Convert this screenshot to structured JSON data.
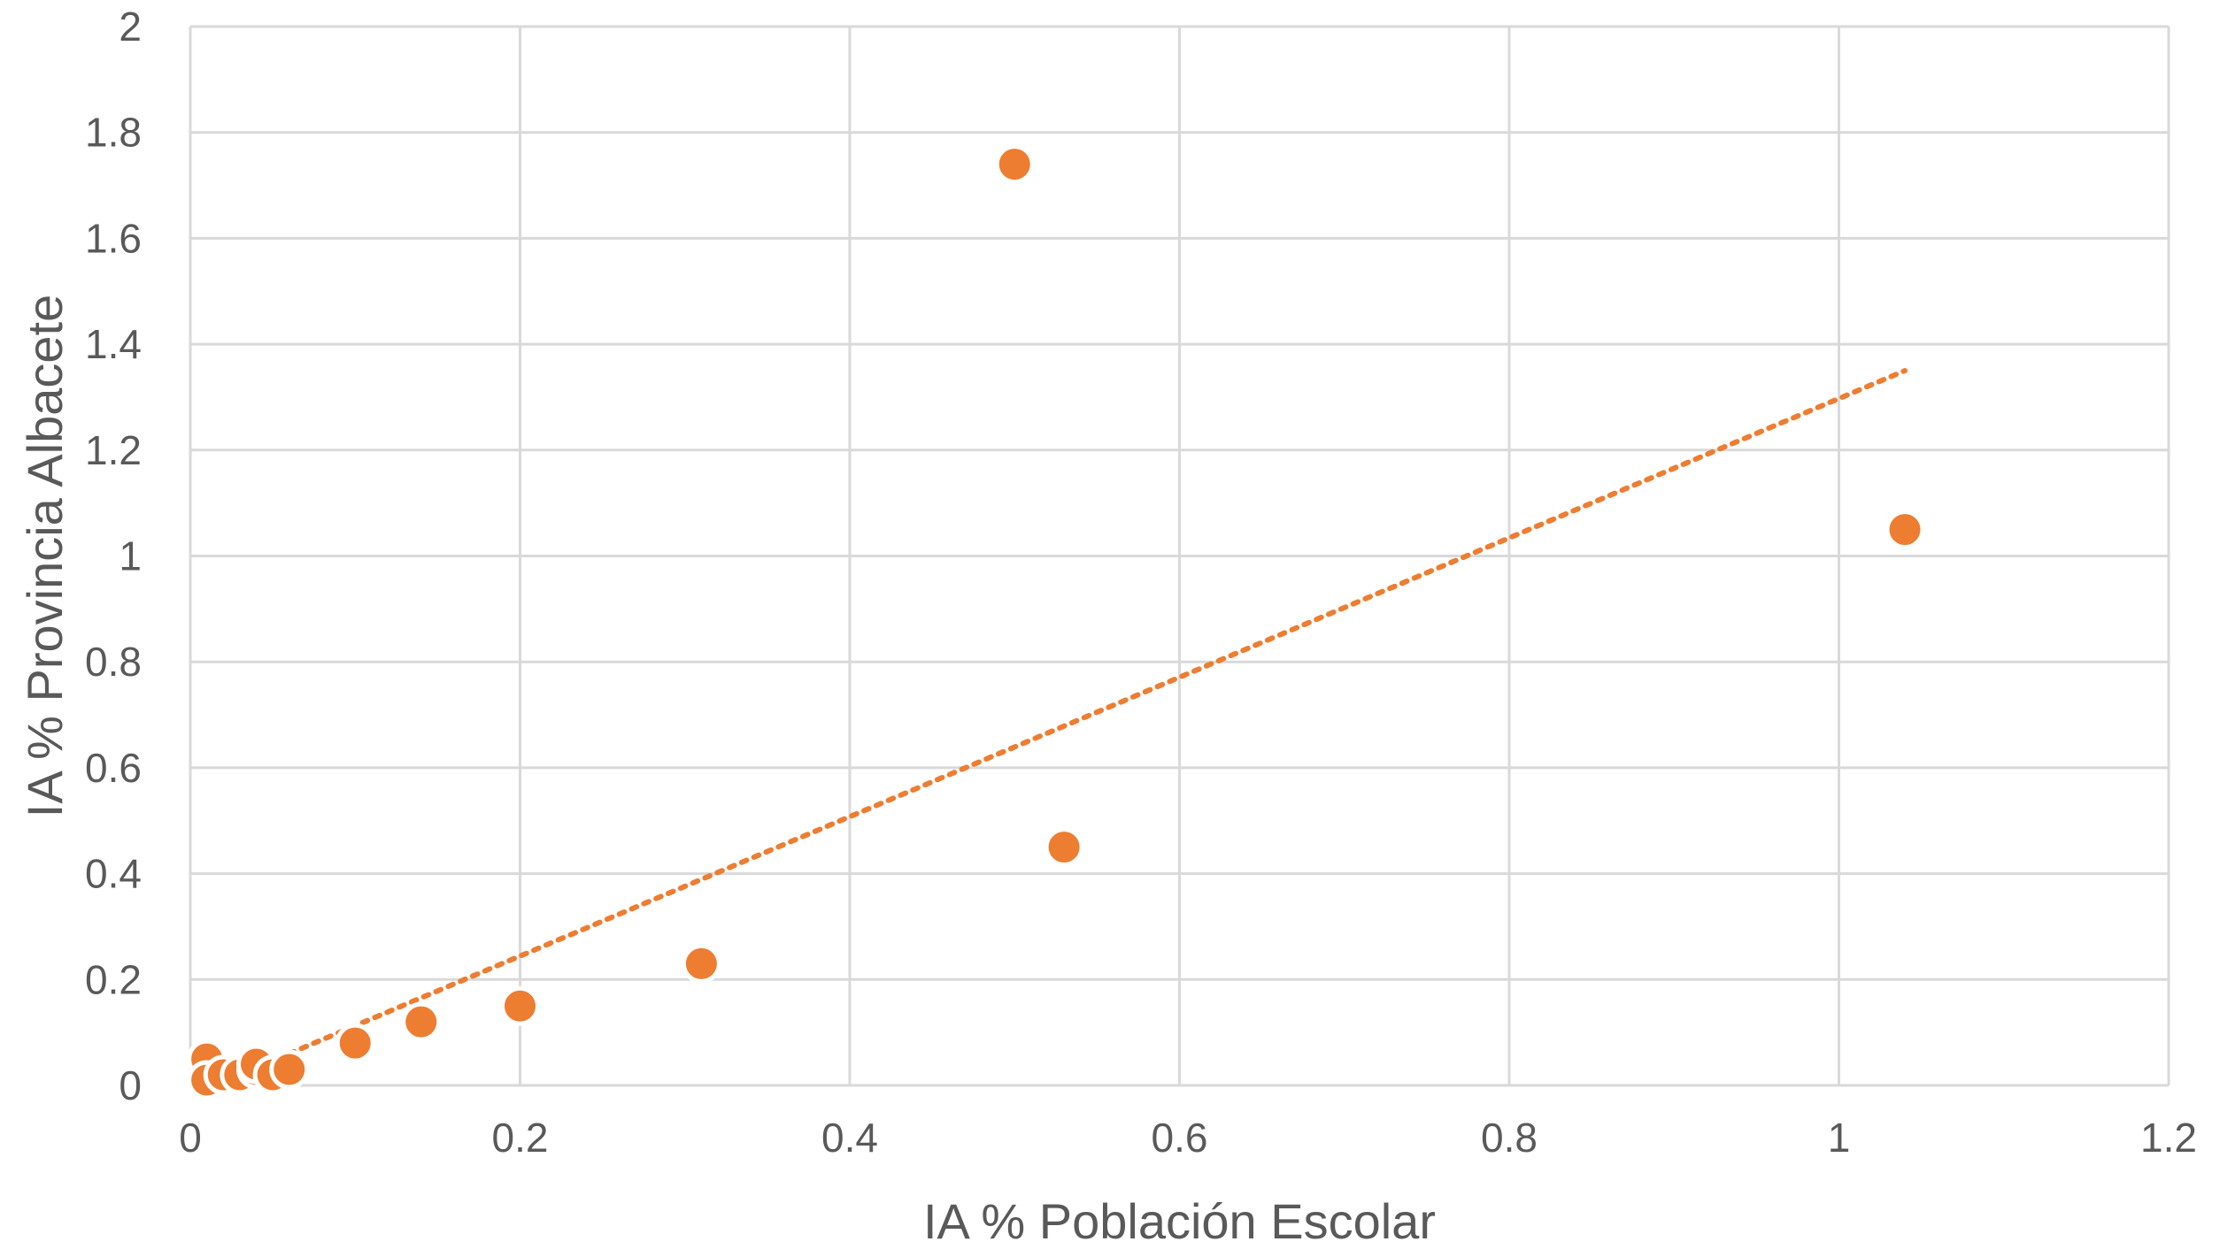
{
  "chart_data": {
    "type": "scatter",
    "title": "",
    "xlabel": "IA % Población Escolar",
    "ylabel": "IA % Provincia Albacete",
    "xlim": [
      0,
      1.2
    ],
    "ylim": [
      0,
      2
    ],
    "x_ticks": [
      0,
      0.2,
      0.4,
      0.6,
      0.8,
      1,
      1.2
    ],
    "y_ticks": [
      0,
      0.2,
      0.4,
      0.6,
      0.8,
      1,
      1.2,
      1.4,
      1.6,
      1.8,
      2
    ],
    "x_tick_labels": [
      "0",
      "0.2",
      "0.4",
      "0.6",
      "0.8",
      "1",
      "1.2"
    ],
    "y_tick_labels": [
      "0",
      "0.2",
      "0.4",
      "0.6",
      "0.8",
      "1",
      "1.2",
      "1.4",
      "1.6",
      "1.8",
      "2"
    ],
    "grid": true,
    "legend": "none",
    "series": [
      {
        "color": "#ED7D31",
        "points": [
          {
            "x": 0.01,
            "y": 0.05
          },
          {
            "x": 0.01,
            "y": 0.01
          },
          {
            "x": 0.02,
            "y": 0.02
          },
          {
            "x": 0.03,
            "y": 0.02
          },
          {
            "x": 0.04,
            "y": 0.03
          },
          {
            "x": 0.04,
            "y": 0.04
          },
          {
            "x": 0.05,
            "y": 0.02
          },
          {
            "x": 0.06,
            "y": 0.03
          },
          {
            "x": 0.1,
            "y": 0.08
          },
          {
            "x": 0.14,
            "y": 0.12
          },
          {
            "x": 0.2,
            "y": 0.15
          },
          {
            "x": 0.31,
            "y": 0.23
          },
          {
            "x": 0.5,
            "y": 1.74
          },
          {
            "x": 0.53,
            "y": 0.45
          },
          {
            "x": 1.04,
            "y": 1.05
          }
        ]
      }
    ],
    "trendline": {
      "type": "linear",
      "style": "dotted",
      "color": "#ED7D31",
      "x_start": 0.06,
      "y_start": 0.06,
      "x_end": 1.04,
      "y_end": 1.35
    }
  }
}
